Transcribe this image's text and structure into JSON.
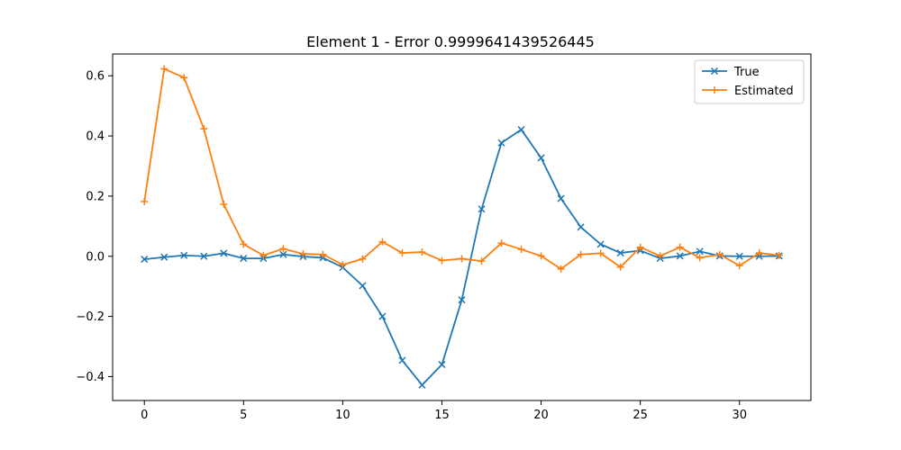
{
  "chart_data": {
    "type": "line",
    "title": "Element 1 - Error 0.9999641439526445",
    "xlabel": "",
    "ylabel": "",
    "xlim": [
      -1.6,
      33.6
    ],
    "ylim": [
      -0.4795,
      0.6725
    ],
    "x_ticks": [
      0,
      5,
      10,
      15,
      20,
      25,
      30
    ],
    "y_ticks": [
      -0.4,
      -0.2,
      0.0,
      0.2,
      0.4,
      0.6
    ],
    "x_tick_labels": [
      "0",
      "5",
      "10",
      "15",
      "20",
      "25",
      "30"
    ],
    "y_tick_labels": [
      "−0.4",
      "−0.2",
      "0.0",
      "0.2",
      "0.4",
      "0.6"
    ],
    "grid": false,
    "legend_position": "upper right",
    "x": [
      0,
      1,
      2,
      3,
      4,
      5,
      6,
      7,
      8,
      9,
      10,
      11,
      12,
      13,
      14,
      15,
      16,
      17,
      18,
      19,
      20,
      21,
      22,
      23,
      24,
      25,
      26,
      27,
      28,
      29,
      30,
      31,
      32
    ],
    "series": [
      {
        "name": "True",
        "color": "#1f77b4",
        "marker": "x",
        "values": [
          -0.01,
          -0.003,
          0.003,
          0.0,
          0.01,
          -0.007,
          -0.007,
          0.006,
          -0.001,
          -0.005,
          -0.037,
          -0.098,
          -0.2,
          -0.346,
          -0.428,
          -0.36,
          -0.145,
          0.157,
          0.377,
          0.421,
          0.327,
          0.192,
          0.097,
          0.04,
          0.011,
          0.019,
          -0.007,
          0.001,
          0.016,
          0.001,
          0.0,
          0.0,
          0.001
        ]
      },
      {
        "name": "Estimated",
        "color": "#ff7f0e",
        "marker": "+",
        "values": [
          0.182,
          0.623,
          0.594,
          0.424,
          0.173,
          0.04,
          0.003,
          0.025,
          0.008,
          0.006,
          -0.028,
          -0.009,
          0.048,
          0.011,
          0.014,
          -0.014,
          -0.008,
          -0.016,
          0.044,
          0.023,
          0.001,
          -0.042,
          0.006,
          0.01,
          -0.036,
          0.03,
          0.001,
          0.03,
          -0.005,
          0.006,
          -0.031,
          0.011,
          0.003
        ]
      }
    ]
  }
}
